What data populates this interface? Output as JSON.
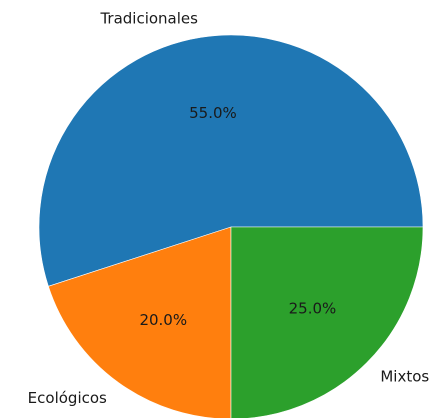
{
  "chart_data": {
    "type": "pie",
    "title": "",
    "start_angle_deg": 0,
    "direction": "counterclockwise",
    "slices": [
      {
        "label": "Tradicionales",
        "value": 55.0,
        "pct_label": "55.0%",
        "color": "#1f77b4"
      },
      {
        "label": "Ecológicos",
        "value": 20.0,
        "pct_label": "20.0%",
        "color": "#ff7f0e"
      },
      {
        "label": "Mixtos",
        "value": 25.0,
        "pct_label": "25.0%",
        "color": "#2ca02c"
      }
    ]
  }
}
